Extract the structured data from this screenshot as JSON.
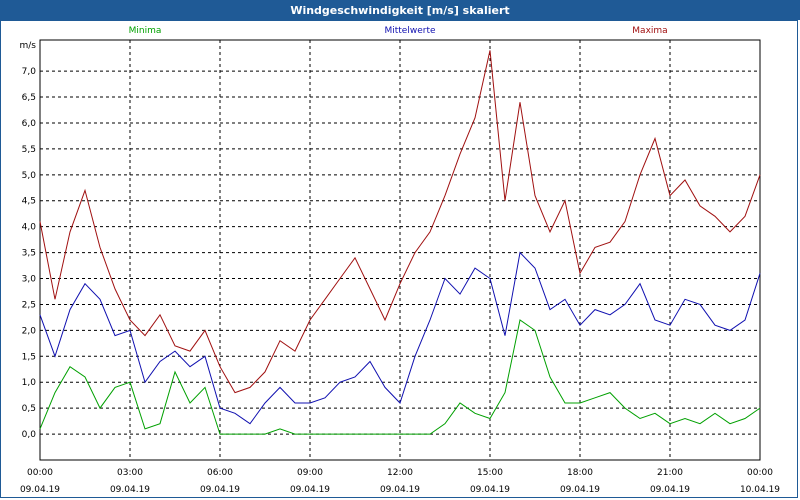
{
  "window": {
    "title": "Windgeschwindigkeit [m/s] skaliert"
  },
  "chart_data": {
    "type": "line",
    "title": "Windgeschwindigkeit [m/s] skaliert",
    "ylabel": "m/s",
    "ylim": [
      -0.5,
      7.6
    ],
    "yticks": [
      0.0,
      0.5,
      1.0,
      1.5,
      2.0,
      2.5,
      3.0,
      3.5,
      4.0,
      4.5,
      5.0,
      5.5,
      6.0,
      6.5,
      7.0
    ],
    "ytick_labels": [
      "0,0",
      "0,5",
      "1,0",
      "1,5",
      "2,0",
      "2,5",
      "3,0",
      "3,5",
      "4,0",
      "4,5",
      "5,0",
      "5,5",
      "6,0",
      "6,5",
      "7,0"
    ],
    "xlim": [
      0,
      24
    ],
    "xticks": [
      0,
      3,
      6,
      9,
      12,
      15,
      18,
      21,
      24
    ],
    "xtick_times": [
      "00:00",
      "03:00",
      "06:00",
      "09:00",
      "12:00",
      "15:00",
      "18:00",
      "21:00",
      "00:00"
    ],
    "xtick_dates": [
      "09.04.19",
      "09.04.19",
      "09.04.19",
      "09.04.19",
      "09.04.19",
      "09.04.19",
      "09.04.19",
      "09.04.19",
      "10.04.19"
    ],
    "grid": true,
    "x_unit": "hours since 09.04.19 00:00",
    "series": [
      {
        "name": "Minima",
        "color": "#00a000",
        "x": [
          0,
          0.5,
          1,
          1.5,
          2,
          2.5,
          3,
          3.5,
          4,
          4.5,
          5,
          5.5,
          6,
          6.5,
          7,
          7.5,
          8,
          8.5,
          9,
          9.5,
          10,
          10.5,
          11,
          11.5,
          12,
          12.5,
          13,
          13.5,
          14,
          14.5,
          15,
          15.5,
          16,
          16.5,
          17,
          17.5,
          18,
          18.5,
          19,
          19.5,
          20,
          20.5,
          21,
          21.5,
          22,
          22.5,
          23,
          23.5,
          24
        ],
        "values": [
          0.1,
          0.8,
          1.3,
          1.1,
          0.5,
          0.9,
          1.0,
          0.1,
          0.2,
          1.2,
          0.6,
          0.9,
          0.0,
          0.0,
          0.0,
          0.0,
          0.1,
          0.0,
          0.0,
          0.0,
          0.0,
          0.0,
          0.0,
          0.0,
          0.0,
          0.0,
          0.0,
          0.2,
          0.6,
          0.4,
          0.3,
          0.8,
          2.2,
          2.0,
          1.1,
          0.6,
          0.6,
          0.7,
          0.8,
          0.5,
          0.3,
          0.4,
          0.2,
          0.3,
          0.2,
          0.4,
          0.2,
          0.3,
          0.5
        ]
      },
      {
        "name": "Mittelwerte",
        "color": "#1010b0",
        "x": [
          0,
          0.5,
          1,
          1.5,
          2,
          2.5,
          3,
          3.5,
          4,
          4.5,
          5,
          5.5,
          6,
          6.5,
          7,
          7.5,
          8,
          8.5,
          9,
          9.5,
          10,
          10.5,
          11,
          11.5,
          12,
          12.5,
          13,
          13.5,
          14,
          14.5,
          15,
          15.5,
          16,
          16.5,
          17,
          17.5,
          18,
          18.5,
          19,
          19.5,
          20,
          20.5,
          21,
          21.5,
          22,
          22.5,
          23,
          23.5,
          24
        ],
        "values": [
          2.3,
          1.5,
          2.4,
          2.9,
          2.6,
          1.9,
          2.0,
          1.0,
          1.4,
          1.6,
          1.3,
          1.5,
          0.5,
          0.4,
          0.2,
          0.6,
          0.9,
          0.6,
          0.6,
          0.7,
          1.0,
          1.1,
          1.4,
          0.9,
          0.6,
          1.5,
          2.2,
          3.0,
          2.7,
          3.2,
          3.0,
          1.9,
          3.5,
          3.2,
          2.4,
          2.6,
          2.1,
          2.4,
          2.3,
          2.5,
          2.9,
          2.2,
          2.1,
          2.6,
          2.5,
          2.1,
          2.0,
          2.2,
          3.1
        ]
      },
      {
        "name": "Maxima",
        "color": "#a01010",
        "x": [
          0,
          0.5,
          1,
          1.5,
          2,
          2.5,
          3,
          3.5,
          4,
          4.5,
          5,
          5.5,
          6,
          6.5,
          7,
          7.5,
          8,
          8.5,
          9,
          9.5,
          10,
          10.5,
          11,
          11.5,
          12,
          12.5,
          13,
          13.5,
          14,
          14.5,
          15,
          15.5,
          16,
          16.5,
          17,
          17.5,
          18,
          18.5,
          19,
          19.5,
          20,
          20.5,
          21,
          21.5,
          22,
          22.5,
          23,
          23.5,
          24
        ],
        "values": [
          4.1,
          2.6,
          3.9,
          4.7,
          3.6,
          2.8,
          2.2,
          1.9,
          2.3,
          1.7,
          1.6,
          2.0,
          1.3,
          0.8,
          0.9,
          1.2,
          1.8,
          1.6,
          2.2,
          2.6,
          3.0,
          3.4,
          2.8,
          2.2,
          2.9,
          3.5,
          3.9,
          4.6,
          5.4,
          6.1,
          7.4,
          4.5,
          6.4,
          4.6,
          3.9,
          4.5,
          3.1,
          3.6,
          3.7,
          4.1,
          5.0,
          5.7,
          4.6,
          4.9,
          4.4,
          4.2,
          3.9,
          4.2,
          5.0
        ]
      }
    ]
  }
}
